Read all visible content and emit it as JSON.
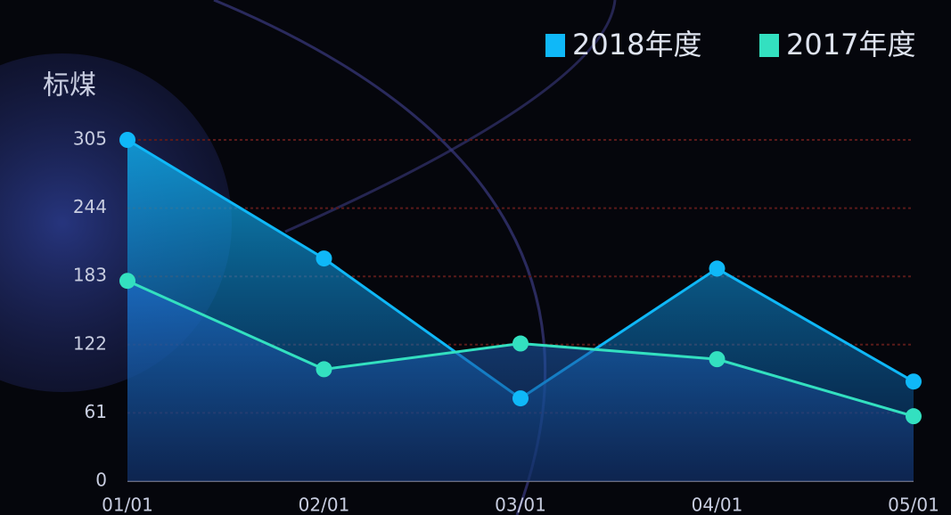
{
  "chart_data": {
    "type": "area-line",
    "y_label": "标煤",
    "categories": [
      "01/01",
      "02/01",
      "03/01",
      "04/01",
      "05/01"
    ],
    "series": [
      {
        "name": "2018年度",
        "color": "#0fb8f8",
        "values": [
          305,
          199,
          74,
          190,
          89
        ]
      },
      {
        "name": "2017年度",
        "color": "#33e0c0",
        "values": [
          179,
          100,
          123,
          109,
          58
        ]
      }
    ],
    "ylim": [
      0,
      305
    ],
    "yticks": [
      0,
      61,
      122,
      183,
      244,
      305
    ],
    "grid": true
  }
}
